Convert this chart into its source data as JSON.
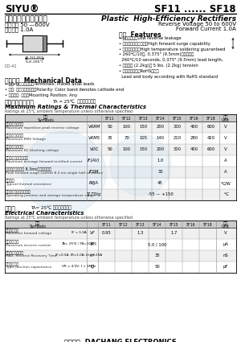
{
  "title_left": "SIYU®",
  "title_right": "SF11 ...... SF18",
  "subtitle_cn": "塑封高效率整流二极管",
  "subtitle_en": "Plastic  High-Efficiency Rectifiers",
  "spec_cn_1": "反向电压 50 —600V",
  "spec_cn_2": "正向电流 1.0A",
  "spec_en_1": "Reverse Voltage 50 to 600V",
  "spec_en_2": "Forward Current 1.0A",
  "features_title": "特性  Features",
  "feat_lines": [
    "• 反向泄漏小。Low reverse leakage",
    "• 正向浚涌峰唃能力强。High forward surge capability",
    "• 高温尊成保证。High temperature soldering guaranteed",
    "• 260℃/10秒, 0.375\" (9.5mm)引线长度。",
    "  260℃/10 seconds, 0.375\" (9.5mm) lead length,",
    "• 承担力大 (2.2kg)。 5 lbs. (2.2kg) tension",
    "• 引线和封装符合RoHS标准。",
    "  Lead and body according with RoHS standard"
  ],
  "mech_title": "机械数据  Mechanical Data",
  "mech_lines": [
    "• 端子: 镀途化轴引线。Terminals: Plated axial leads",
    "• 极性: 色带标识阴极端。Polarity: Color band denotes cathode end",
    "• 安装位置: 任意。Mounting Position: Any"
  ],
  "max_title_cn": "极限值和温度特性",
  "max_cond": "TA = 25℃  除非另有规定。",
  "max_title_en": "Maximum Ratings & Thermal Characteristics",
  "max_subtitle": "Ratings at 25℃ ambient temperature unless otherwise specified",
  "series": [
    "SF11",
    "SF12",
    "SF13",
    "SF14",
    "SF15",
    "SF16",
    "SF18"
  ],
  "max_rows": [
    {
      "cn1": "最大反向峰唃电压",
      "cn2": "Maximum repetitive peak reverse voltage",
      "symbol": "VRRM",
      "values": [
        "50",
        "100",
        "150",
        "200",
        "300",
        "400",
        "600"
      ],
      "unit": "V"
    },
    {
      "cn1": "最大方向峰唃电压",
      "cn2": "Maximum RMS Voltage",
      "symbol": "VRMS",
      "values": [
        "35",
        "70",
        "105",
        "140",
        "210",
        "280",
        "420"
      ],
      "unit": "V"
    },
    {
      "cn1": "最大直流阻断电压",
      "cn2": "Maximum DC blocking voltage",
      "symbol": "VDC",
      "values": [
        "50",
        "100",
        "150",
        "200",
        "300",
        "400",
        "600"
      ],
      "unit": "V"
    },
    {
      "cn1": "最大正向平均整流电流",
      "cn2": "Maximum average forward rectified current",
      "symbol": "IF(AV)",
      "values": [
        "",
        "",
        "1.0",
        "",
        "",
        "",
        ""
      ],
      "unit": "A"
    },
    {
      "cn1": "峰到正向浪涌电流 8.3ms半一个正弦波",
      "cn2": "Peak forward surge current 8.3 ms single half sinewave",
      "symbol": "IFSM",
      "values": [
        "",
        "",
        "30",
        "",
        "",
        "",
        ""
      ],
      "unit": "A"
    },
    {
      "cn1": "典型热阻",
      "cn2": "Typical thermal resistance",
      "symbol": "RθJA",
      "values": [
        "",
        "",
        "45",
        "",
        "",
        "",
        ""
      ],
      "unit": "℃/W"
    },
    {
      "cn1": "工作结点和存储温度范围",
      "cn2": "Operating junction and storage temperature range",
      "symbol": "TJ,TStg",
      "values": [
        "",
        "",
        "-55 — +150",
        "",
        "",
        "",
        ""
      ],
      "unit": "℃"
    }
  ],
  "elec_title_cn": "电特性",
  "elec_cond": "TA= 25℃ 除非另有规定。",
  "elec_title_en": "Electrical Characteristics",
  "elec_subtitle": "Ratings at 25℃ ambient temperature unless otherwise specified",
  "elec_series": [
    "SF11",
    "SF12",
    "SF13",
    "SF14",
    "SF15",
    "SF16",
    "SF18"
  ],
  "elec_rows": [
    {
      "cn1": "最大正向电压",
      "cn2": "Maximum forward voltage",
      "cond": "IF = 1.0A",
      "symbol": "VF",
      "v11": "0.95",
      "v12": "",
      "v13": "1.3",
      "v14": "",
      "v15": "1.7",
      "v16": "",
      "v18": "",
      "unit": "V"
    },
    {
      "cn1": "最大反向电流",
      "cn2": "Maximum reverse current",
      "cond": "TA= 25℃ / TA=100℃",
      "symbol": "IR",
      "v11": "",
      "v12": "",
      "v13": "5.0 / 100",
      "v14": "",
      "v15": "",
      "v16": "",
      "v18": "",
      "unit": "μA"
    },
    {
      "cn1": "最大反向恢复时间",
      "cn2": "MAX. Reverse Recovery Time",
      "cond": "IF=0.5A, IR=1.0A, Irr=0.25A",
      "symbol": "trr",
      "v11": "",
      "v12": "",
      "v13": "35",
      "v14": "",
      "v15": "",
      "v16": "",
      "v18": "",
      "unit": "nS"
    },
    {
      "cn1": "典型结压电容",
      "cn2": "Typic junction capacitance",
      "cond": "VR = 4.0V, f = 1MHz",
      "symbol": "CJ",
      "v11": "",
      "v12": "",
      "v13": "50",
      "v14": "",
      "v15": "",
      "v16": "",
      "v18": "",
      "unit": "pF"
    }
  ],
  "footer": "大昌电子  DACHANG ELECTRONICS",
  "bg_color": "#ffffff",
  "watermark_color": "#c8dff0"
}
